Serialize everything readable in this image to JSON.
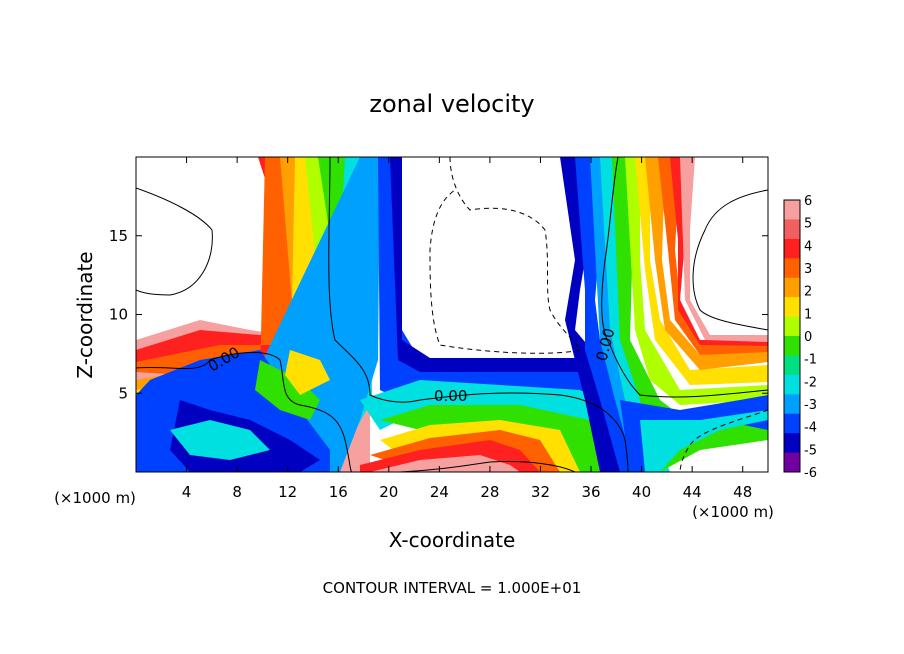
{
  "chart_data": {
    "type": "heatmap",
    "title": "zonal velocity",
    "xlabel": "X-coordinate",
    "ylabel": "Z-coordinate",
    "x_unit": "(×1000 m)",
    "x_unit_right": "(×1000 m)",
    "xlim": [
      0,
      50
    ],
    "ylim": [
      0,
      20
    ],
    "x_ticks": [
      4,
      8,
      12,
      16,
      20,
      24,
      28,
      32,
      36,
      40,
      44,
      48
    ],
    "y_ticks": [
      5,
      10,
      15
    ],
    "footer": "CONTOUR INTERVAL = 1.000E+01",
    "colorbar": {
      "min": -6,
      "max": 6,
      "ticks": [
        6,
        5,
        4,
        3,
        2,
        1,
        0,
        -1,
        -2,
        -3,
        -4,
        -5,
        -6
      ],
      "colors": [
        "#f7a0a0",
        "#f06060",
        "#ff2020",
        "#ff6000",
        "#ffa000",
        "#ffe000",
        "#b0ff00",
        "#30e000",
        "#00e080",
        "#00e0e0",
        "#00a0ff",
        "#0040ff",
        "#0000c0",
        "#7000a0"
      ]
    },
    "contour_labels": [
      "0.00",
      "0.00",
      "0.00"
    ]
  }
}
